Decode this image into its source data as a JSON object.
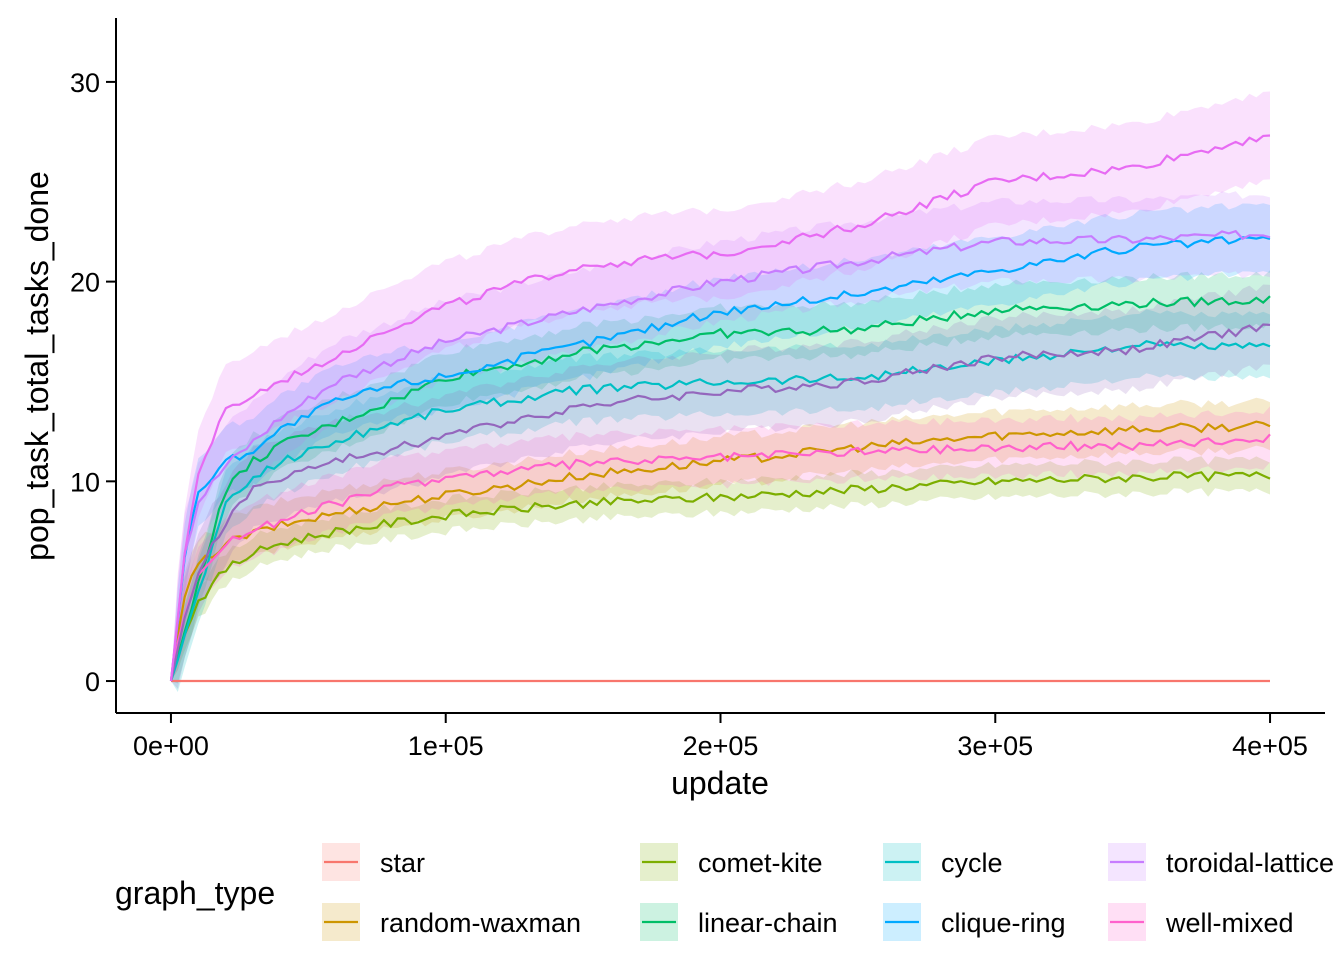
{
  "chart_data": {
    "type": "line",
    "title": "",
    "xlabel": "update",
    "ylabel": "pop_task_total_tasks_done",
    "xlim": [
      -20000,
      420000
    ],
    "ylim": [
      -1.6,
      33.2
    ],
    "x_ticks": [
      0,
      100000,
      200000,
      300000,
      400000
    ],
    "x_tick_labels": [
      "0e+00",
      "1e+05",
      "2e+05",
      "3e+05",
      "4e+05"
    ],
    "y_ticks": [
      0,
      10,
      20,
      30
    ],
    "y_tick_labels": [
      "0",
      "10",
      "20",
      "30"
    ],
    "grid": false,
    "ribbons": true,
    "legend": {
      "title": "graph_type",
      "placement": "bottom",
      "rows": 2
    },
    "series": [
      {
        "name": "star",
        "color": "#F8766D",
        "halfwidth": 0.0,
        "x": [
          0,
          5000,
          10000,
          20000,
          30000,
          40000,
          60000,
          80000,
          100000,
          150000,
          200000,
          250000,
          300000,
          350000,
          400000
        ],
        "y": [
          0,
          0,
          0,
          0,
          0,
          0,
          0,
          0,
          0,
          0,
          0,
          0,
          0,
          0,
          0
        ]
      },
      {
        "name": "random-waxman",
        "color": "#CD9600",
        "halfwidth": 1.2,
        "x": [
          0,
          5000,
          10000,
          20000,
          30000,
          40000,
          60000,
          80000,
          100000,
          150000,
          200000,
          250000,
          300000,
          350000,
          400000
        ],
        "y": [
          0,
          4.3,
          5.8,
          6.9,
          7.4,
          7.8,
          8.4,
          8.9,
          9.3,
          10.3,
          11.0,
          11.7,
          12.3,
          12.6,
          12.8
        ]
      },
      {
        "name": "comet-kite",
        "color": "#7CAE00",
        "halfwidth": 0.8,
        "x": [
          0,
          5000,
          10000,
          20000,
          30000,
          40000,
          60000,
          80000,
          100000,
          150000,
          200000,
          250000,
          300000,
          350000,
          400000
        ],
        "y": [
          0,
          2.5,
          4.0,
          5.6,
          6.4,
          6.9,
          7.5,
          7.9,
          8.3,
          8.9,
          9.2,
          9.6,
          10.0,
          10.2,
          10.3
        ]
      },
      {
        "name": "linear-chain",
        "color": "#00BE67",
        "halfwidth": 1.3,
        "x": [
          0,
          5000,
          10000,
          20000,
          30000,
          40000,
          60000,
          80000,
          100000,
          150000,
          200000,
          250000,
          300000,
          350000,
          400000
        ],
        "y": [
          0,
          2.3,
          5.0,
          9.6,
          11.0,
          11.8,
          12.9,
          14.0,
          15.2,
          16.5,
          17.4,
          17.6,
          18.6,
          18.9,
          19.1
        ]
      },
      {
        "name": "cycle",
        "color": "#00BFC4",
        "halfwidth": 1.6,
        "x": [
          0,
          5000,
          10000,
          20000,
          30000,
          40000,
          60000,
          80000,
          100000,
          150000,
          200000,
          250000,
          300000,
          350000,
          400000
        ],
        "y": [
          0,
          2.2,
          4.5,
          8.8,
          10.2,
          11.0,
          12.0,
          12.9,
          13.6,
          14.6,
          15.0,
          15.2,
          16.0,
          16.8,
          16.7
        ]
      },
      {
        "name": "clique-ring",
        "color": "#00A9FF",
        "halfwidth": 1.7,
        "x": [
          0,
          5000,
          10000,
          20000,
          30000,
          40000,
          60000,
          80000,
          100000,
          150000,
          200000,
          250000,
          300000,
          350000,
          400000
        ],
        "y": [
          0,
          6.2,
          9.5,
          11.0,
          11.6,
          12.6,
          14.0,
          14.8,
          15.3,
          16.9,
          18.5,
          19.4,
          20.6,
          21.7,
          22.2
        ]
      },
      {
        "name": "toroidal-lattice",
        "color": "#C77CFF",
        "halfwidth": 2.0,
        "x": [
          0,
          5000,
          10000,
          20000,
          30000,
          40000,
          60000,
          80000,
          100000,
          150000,
          200000,
          250000,
          300000,
          350000,
          400000
        ],
        "y": [
          0,
          6.5,
          9.0,
          10.8,
          12.0,
          13.2,
          15.0,
          16.0,
          17.0,
          18.6,
          20.0,
          21.0,
          22.0,
          22.1,
          22.4
        ]
      },
      {
        "name": "well-mixed",
        "color": "#FF61CC",
        "halfwidth": 1.4,
        "x": [
          0,
          5000,
          10000,
          20000,
          30000,
          40000,
          60000,
          80000,
          100000,
          150000,
          200000,
          250000,
          300000,
          350000,
          400000
        ],
        "y": [
          0,
          3.5,
          5.4,
          6.9,
          7.6,
          8.0,
          8.9,
          9.7,
          10.2,
          10.9,
          11.2,
          11.5,
          11.7,
          11.8,
          12.2
        ]
      },
      {
        "name": "",
        "color": "#9467BD",
        "halfwidth": 2.0,
        "x": [
          0,
          5000,
          10000,
          20000,
          30000,
          40000,
          60000,
          80000,
          100000,
          150000,
          200000,
          250000,
          300000,
          350000,
          400000
        ],
        "y": [
          0,
          3.0,
          5.5,
          8.0,
          9.6,
          10.2,
          11.0,
          11.6,
          12.3,
          13.8,
          14.5,
          15.0,
          16.2,
          16.6,
          17.8
        ]
      },
      {
        "name": "",
        "color": "#E76BF3",
        "halfwidth": 2.2,
        "x": [
          0,
          5000,
          10000,
          20000,
          30000,
          40000,
          60000,
          80000,
          100000,
          150000,
          200000,
          250000,
          300000,
          350000,
          400000
        ],
        "y": [
          0,
          6.3,
          10.5,
          13.5,
          14.3,
          15.0,
          16.3,
          17.7,
          18.8,
          20.8,
          21.4,
          22.8,
          25.0,
          25.7,
          27.4
        ]
      }
    ]
  }
}
